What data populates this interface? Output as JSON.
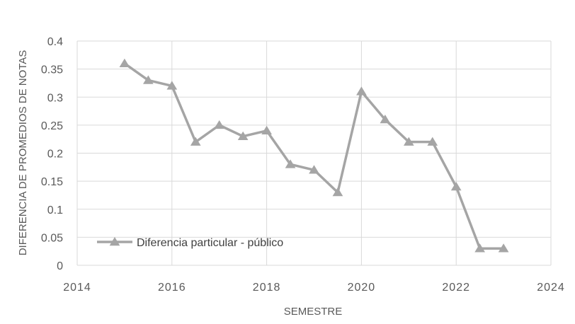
{
  "chart_data": {
    "type": "line",
    "xlabel": "SEMESTRE",
    "ylabel": "DIFERENCIA DE PROMEDIOS DE NOTAS",
    "xlim": [
      2014,
      2024
    ],
    "ylim": [
      0,
      0.4
    ],
    "x_ticks": [
      "2014",
      "2016",
      "2018",
      "2020",
      "2022",
      "2024"
    ],
    "x_tick_values": [
      2014,
      2016,
      2018,
      2020,
      2022,
      2024
    ],
    "y_ticks": [
      "0",
      "0.05",
      "0.1",
      "0.15",
      "0.2",
      "0.25",
      "0.3",
      "0.35",
      "0.4"
    ],
    "y_tick_values": [
      0,
      0.05,
      0.1,
      0.15,
      0.2,
      0.25,
      0.3,
      0.35,
      0.4
    ],
    "grid": true,
    "legend_position": "bottom-left",
    "series": [
      {
        "name": "Diferencia particular - público",
        "color": "#a5a5a5",
        "marker": "triangle",
        "x": [
          2015,
          2015.5,
          2016,
          2016.5,
          2017,
          2017.5,
          2018,
          2018.5,
          2019,
          2019.5,
          2020,
          2020.5,
          2021,
          2021.5,
          2022,
          2022.5,
          2023
        ],
        "y": [
          0.36,
          0.33,
          0.32,
          0.22,
          0.25,
          0.23,
          0.24,
          0.18,
          0.17,
          0.13,
          0.31,
          0.26,
          0.22,
          0.22,
          0.14,
          0.03,
          0.03
        ]
      }
    ]
  }
}
